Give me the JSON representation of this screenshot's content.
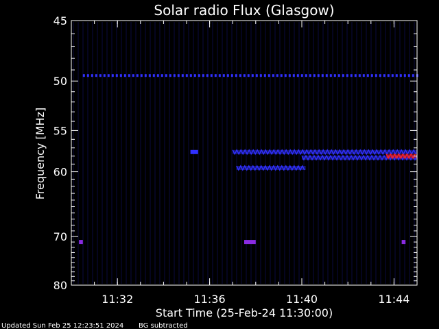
{
  "chart_data": {
    "type": "heatmap",
    "title": "Solar radio Flux (Glasgow)",
    "xlabel": "Start Time (25-Feb-24 11:30:00)",
    "ylabel": "Frequency [MHz]",
    "x_axis": {
      "unit": "time",
      "range": [
        "11:30:00",
        "11:45:00"
      ],
      "ticks": [
        "11:32",
        "11:36",
        "11:40",
        "11:44"
      ]
    },
    "y_axis": {
      "unit": "MHz",
      "scale": "reciprocal",
      "range": [
        45,
        80
      ],
      "inverted": true,
      "ticks": [
        45,
        50,
        55,
        60,
        70,
        80
      ]
    },
    "grid": false,
    "colors": {
      "background": "#000000",
      "axes": "#ffffff",
      "weak": "#1a1aa0",
      "medium": "#3030ff",
      "strong": "#ff2020",
      "marker": "#8a2be2"
    },
    "features": [
      {
        "freq_mhz": 49.5,
        "t_start": "11:30:30",
        "t_end": "11:45:00",
        "intensity": "medium",
        "pattern": "dotted"
      },
      {
        "freq_mhz": 57.5,
        "t_start": "11:35:10",
        "t_end": "11:35:30",
        "intensity": "medium",
        "pattern": "solid"
      },
      {
        "freq_mhz": 57.5,
        "t_start": "11:37:00",
        "t_end": "11:45:00",
        "intensity": "medium",
        "pattern": "zigzag"
      },
      {
        "freq_mhz": 58.2,
        "t_start": "11:40:00",
        "t_end": "11:45:00",
        "intensity": "medium",
        "pattern": "zigzag"
      },
      {
        "freq_mhz": 58.0,
        "t_start": "11:43:40",
        "t_end": "11:45:00",
        "intensity": "strong",
        "pattern": "zigzag"
      },
      {
        "freq_mhz": 59.5,
        "t_start": "11:37:10",
        "t_end": "11:40:10",
        "intensity": "medium",
        "pattern": "zigzag"
      },
      {
        "freq_mhz": 71.0,
        "t_start": "11:30:20",
        "t_end": "11:30:30",
        "intensity": "marker",
        "pattern": "solid"
      },
      {
        "freq_mhz": 71.0,
        "t_start": "11:37:30",
        "t_end": "11:38:00",
        "intensity": "marker",
        "pattern": "solid"
      },
      {
        "freq_mhz": 71.0,
        "t_start": "11:44:20",
        "t_end": "11:44:30",
        "intensity": "marker",
        "pattern": "solid"
      }
    ]
  },
  "footer": {
    "updated": "Updated Sun Feb 25 12:23:51 2024",
    "mode": "BG subtracted"
  }
}
